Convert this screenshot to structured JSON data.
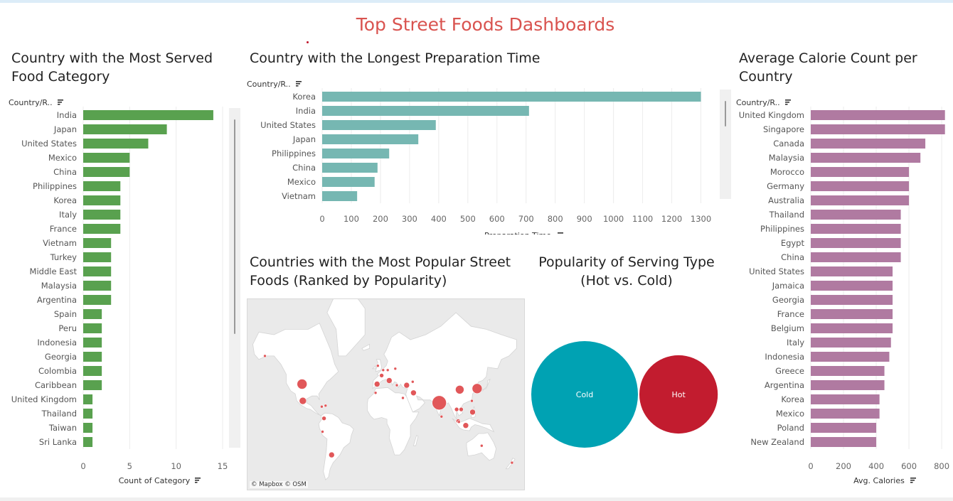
{
  "dashboard": {
    "title": "Top Street Foods Dashboards"
  },
  "colors": {
    "green": "#59a14f",
    "teal": "#76b7b2",
    "pink": "#b07aa1",
    "cold": "#00a2b3",
    "hot": "#c21c2f",
    "map_dot": "#e15759"
  },
  "category_chart": {
    "title": "Country with the Most Served Food Category",
    "field_header": "Country/R..",
    "axis_title": "Count of Category",
    "chart_data": {
      "type": "bar",
      "orientation": "horizontal",
      "categories": [
        "India",
        "Japan",
        "United States",
        "Mexico",
        "China",
        "Philippines",
        "Korea",
        "Italy",
        "France",
        "Vietnam",
        "Turkey",
        "Middle East",
        "Malaysia",
        "Argentina",
        "Spain",
        "Peru",
        "Indonesia",
        "Georgia",
        "Colombia",
        "Caribbean",
        "United Kingdom",
        "Thailand",
        "Taiwan",
        "Sri Lanka"
      ],
      "values": [
        14,
        9,
        7,
        5,
        5,
        4,
        4,
        4,
        4,
        3,
        3,
        3,
        3,
        3,
        2,
        2,
        2,
        2,
        2,
        2,
        1,
        1,
        1,
        1
      ],
      "xlabel": "Count of Category",
      "xlim": [
        0,
        15
      ],
      "xticks": [
        0,
        5,
        10,
        15
      ],
      "grid": true
    }
  },
  "prep_chart": {
    "title": "Country with the Longest Preparation Time",
    "field_header": "Country/R..",
    "axis_title": "Preparation Time",
    "chart_data": {
      "type": "bar",
      "orientation": "horizontal",
      "categories": [
        "Korea",
        "India",
        "United States",
        "Japan",
        "Philippines",
        "China",
        "Mexico",
        "Vietnam"
      ],
      "values": [
        1300,
        710,
        390,
        330,
        230,
        190,
        180,
        120
      ],
      "xlabel": "Preparation Time",
      "xlim": [
        0,
        1350
      ],
      "xticks": [
        0,
        100,
        200,
        300,
        400,
        500,
        600,
        700,
        800,
        900,
        1000,
        1100,
        1200,
        1300
      ],
      "grid": true
    }
  },
  "calorie_chart": {
    "title": "Average Calorie Count per Country",
    "field_header": "Country/R..",
    "axis_title": "Avg. Calories",
    "chart_data": {
      "type": "bar",
      "orientation": "horizontal",
      "categories": [
        "United Kingdom",
        "Singapore",
        "Canada",
        "Malaysia",
        "Morocco",
        "Germany",
        "Australia",
        "Thailand",
        "Philippines",
        "Egypt",
        "China",
        "United States",
        "Jamaica",
        "Georgia",
        "France",
        "Belgium",
        "Italy",
        "Indonesia",
        "Greece",
        "Argentina",
        "Korea",
        "Mexico",
        "Poland",
        "New Zealand"
      ],
      "values": [
        820,
        820,
        700,
        670,
        600,
        600,
        600,
        550,
        550,
        550,
        550,
        500,
        500,
        500,
        500,
        500,
        490,
        480,
        450,
        450,
        420,
        420,
        400,
        400
      ],
      "xlabel": "Avg. Calories",
      "xlim": [
        0,
        830
      ],
      "xticks": [
        0,
        200,
        400,
        600,
        800
      ],
      "grid": true
    }
  },
  "map_chart": {
    "title": "Countries with the Most Popular Street Foods (Ranked by Popularity)",
    "attribution": "© Mapbox © OSM",
    "chart_data": {
      "type": "map",
      "points": [
        {
          "lon": -103,
          "lat": 40,
          "size": 7
        },
        {
          "lon": -152,
          "lat": 60,
          "size": 2
        },
        {
          "lon": -102,
          "lat": 24,
          "size": 5
        },
        {
          "lon": -77,
          "lat": 18,
          "size": 2
        },
        {
          "lon": -72,
          "lat": 19,
          "size": 2
        },
        {
          "lon": -74,
          "lat": 5,
          "size": 3
        },
        {
          "lon": -76,
          "lat": -10,
          "size": 2
        },
        {
          "lon": -64,
          "lat": -34,
          "size": 4
        },
        {
          "lon": -3,
          "lat": 54,
          "size": 2
        },
        {
          "lon": 2,
          "lat": 47,
          "size": 3
        },
        {
          "lon": 10,
          "lat": 51,
          "size": 2
        },
        {
          "lon": 4,
          "lat": 51,
          "size": 2
        },
        {
          "lon": -4,
          "lat": 40,
          "size": 4
        },
        {
          "lon": 12,
          "lat": 43,
          "size": 4
        },
        {
          "lon": 22,
          "lat": 39,
          "size": 2
        },
        {
          "lon": 20,
          "lat": 52,
          "size": 2
        },
        {
          "lon": 35,
          "lat": 39,
          "size": 4
        },
        {
          "lon": 43,
          "lat": 42,
          "size": 2
        },
        {
          "lon": 44,
          "lat": 32,
          "size": 4
        },
        {
          "lon": -6,
          "lat": 32,
          "size": 2
        },
        {
          "lon": 30,
          "lat": 27,
          "size": 2
        },
        {
          "lon": 78,
          "lat": 22,
          "size": 10
        },
        {
          "lon": 81,
          "lat": 7,
          "size": 2
        },
        {
          "lon": 105,
          "lat": 35,
          "size": 6
        },
        {
          "lon": 128,
          "lat": 36,
          "size": 7
        },
        {
          "lon": 121,
          "lat": 24,
          "size": 2
        },
        {
          "lon": 101,
          "lat": 15,
          "size": 3
        },
        {
          "lon": 107,
          "lat": 15,
          "size": 3
        },
        {
          "lon": 122,
          "lat": 12,
          "size": 4
        },
        {
          "lon": 103,
          "lat": 2,
          "size": 3
        },
        {
          "lon": 104,
          "lat": 1,
          "size": 2
        },
        {
          "lon": 113,
          "lat": -3,
          "size": 4
        },
        {
          "lon": 134,
          "lat": -25,
          "size": 2
        },
        {
          "lon": 174,
          "lat": -41,
          "size": 2
        }
      ]
    }
  },
  "serving_chart": {
    "title": "Popularity of Serving Type (Hot vs. Cold)",
    "chart_data": {
      "type": "bubble",
      "categories": [
        "Cold",
        "Hot"
      ],
      "values": [
        100,
        54
      ]
    }
  }
}
